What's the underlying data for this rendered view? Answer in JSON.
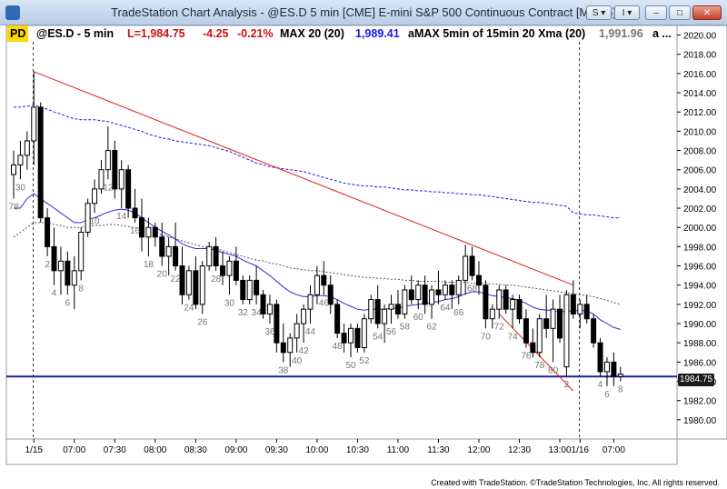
{
  "window": {
    "title": "TradeStation Chart Analysis - @ES.D 5 min [CME] E-mini S&P 500 Continuous Contract [Mar15]",
    "buttons": {
      "s": "S ▾",
      "i": "I ▾",
      "minimize": "–",
      "maximize": "□",
      "close": "✕"
    }
  },
  "infobar": {
    "badge": "PD",
    "symbol": "@ES.D - 5 min",
    "last": "L=1,984.75",
    "change": "-4.25",
    "pct": "-0.21%",
    "max_label": "MAX 20 (20)",
    "max_value": "1,989.41",
    "amax_label": "aMAX 5min of 15min 20 Xma (20)",
    "amax_value": "1,991.96",
    "more": "a ..."
  },
  "price_box": "1984.75",
  "footer": "Created with TradeStation. ©TradeStation Technologies, Inc. All rights reserved.",
  "colors": {
    "bar": "#000000",
    "ema": "#2b2bd6",
    "band_upper": "#1a1ae6",
    "band_lower": "#555555",
    "trendline": "#e02020",
    "support": "#2020a0",
    "axis_text": "#000000",
    "bar_label": "#777777"
  },
  "chart_data": {
    "type": "candlestick",
    "y_axis": {
      "min": 1978,
      "max": 2021,
      "ticks": [
        1980,
        1982,
        1984,
        1986,
        1988,
        1990,
        1992,
        1994,
        1996,
        1998,
        2000,
        2002,
        2004,
        2006,
        2008,
        2010,
        2012,
        2014,
        2016,
        2018,
        2020
      ]
    },
    "x_axis": {
      "labels": [
        {
          "label": "1/15",
          "bar": 3
        },
        {
          "label": "07:00",
          "bar": 9
        },
        {
          "label": "07:30",
          "bar": 15
        },
        {
          "label": "08:00",
          "bar": 21
        },
        {
          "label": "08:30",
          "bar": 27
        },
        {
          "label": "09:00",
          "bar": 33
        },
        {
          "label": "09:30",
          "bar": 39
        },
        {
          "label": "10:00",
          "bar": 45
        },
        {
          "label": "10:30",
          "bar": 51
        },
        {
          "label": "11:00",
          "bar": 57
        },
        {
          "label": "11:30",
          "bar": 63
        },
        {
          "label": "12:00",
          "bar": 69
        },
        {
          "label": "12:30",
          "bar": 75
        },
        {
          "label": "13:00",
          "bar": 81
        },
        {
          "label": "1/16",
          "bar": 84
        },
        {
          "label": "07:00",
          "bar": 89
        }
      ]
    },
    "session_breaks": [
      3,
      84
    ],
    "bars": [
      [
        2005.5,
        2008,
        2003,
        2006.5
      ],
      [
        2006.5,
        2009,
        2005,
        2007.5
      ],
      [
        2007.5,
        2010,
        2006,
        2009
      ],
      [
        2009,
        2016.2,
        2006.5,
        2012.5
      ],
      [
        2012.5,
        2013,
        2000.5,
        2001
      ],
      [
        2001,
        2002,
        1997,
        1998
      ],
      [
        1998,
        2000,
        1994,
        1995.5
      ],
      [
        1995.5,
        1998,
        1993,
        1996.5
      ],
      [
        1996.5,
        1997.5,
        1993,
        1994
      ],
      [
        1994,
        1997,
        1991.5,
        1995.5
      ],
      [
        1995.5,
        2000,
        1994.5,
        1999.5
      ],
      [
        1999.5,
        2003,
        1999,
        2002.5
      ],
      [
        2002.5,
        2005,
        2001.5,
        2004
      ],
      [
        2004,
        2007,
        2003.5,
        2006
      ],
      [
        2006,
        2010.5,
        2005,
        2008
      ],
      [
        2008,
        2009,
        2003,
        2004
      ],
      [
        2004,
        2007,
        2002,
        2006
      ],
      [
        2006,
        2006.5,
        2001,
        2002
      ],
      [
        2002,
        2004,
        2000.5,
        2001
      ],
      [
        2001,
        2003,
        1997.5,
        1999
      ],
      [
        1999,
        2001,
        1997,
        2000
      ],
      [
        2000,
        2000.5,
        1998,
        1999
      ],
      [
        1999,
        2000.5,
        1996,
        1997
      ],
      [
        1997,
        1999,
        1995,
        1998
      ],
      [
        1998,
        2000.5,
        1995.5,
        1996
      ],
      [
        1996,
        1998,
        1992,
        1993
      ],
      [
        1993,
        1996,
        1992.5,
        1995.5
      ],
      [
        1995.5,
        1997,
        1991.5,
        1992
      ],
      [
        1992,
        1996.5,
        1991,
        1996
      ],
      [
        1996,
        1998.5,
        1995.5,
        1998
      ],
      [
        1998,
        1999,
        1995.5,
        1996
      ],
      [
        1996,
        1997.5,
        1994,
        1995
      ],
      [
        1995,
        1997,
        1993,
        1996.5
      ],
      [
        1996.5,
        1998,
        1994,
        1994.5
      ],
      [
        1994.5,
        1995,
        1992,
        1992.5
      ],
      [
        1992.5,
        1995,
        1992,
        1994.5
      ],
      [
        1994.5,
        1996,
        1992,
        1993
      ],
      [
        1993,
        1993.5,
        1990.5,
        1991
      ],
      [
        1991,
        1993,
        1990,
        1992
      ],
      [
        1992,
        1992.5,
        1987,
        1988
      ],
      [
        1988,
        1990,
        1986,
        1987
      ],
      [
        1987,
        1989,
        1985.5,
        1988.5
      ],
      [
        1988.5,
        1991,
        1987,
        1990
      ],
      [
        1990,
        1992,
        1988,
        1991.5
      ],
      [
        1991.5,
        1994,
        1990,
        1993
      ],
      [
        1993,
        1996,
        1992,
        1995
      ],
      [
        1995,
        1996.5,
        1993,
        1994
      ],
      [
        1994,
        1995,
        1991,
        1992
      ],
      [
        1992,
        1992.5,
        1988.5,
        1989
      ],
      [
        1989,
        1990,
        1987,
        1988
      ],
      [
        1988,
        1990,
        1986.5,
        1989.5
      ],
      [
        1989.5,
        1990,
        1987,
        1987.5
      ],
      [
        1987.5,
        1991,
        1987,
        1990.5
      ],
      [
        1990.5,
        1993,
        1990,
        1992.5
      ],
      [
        1992.5,
        1994,
        1989.5,
        1990
      ],
      [
        1990,
        1992,
        1988,
        1991.5
      ],
      [
        1991.5,
        1993,
        1990,
        1992
      ],
      [
        1992,
        1993.5,
        1990.5,
        1991
      ],
      [
        1991,
        1994,
        1990.5,
        1993.5
      ],
      [
        1993.5,
        1995,
        1992,
        1992.5
      ],
      [
        1992.5,
        1994.5,
        1991.5,
        1994
      ],
      [
        1994,
        1995,
        1991,
        1992
      ],
      [
        1992,
        1994,
        1990.5,
        1993.5
      ],
      [
        1993.5,
        1995.5,
        1992,
        1993
      ],
      [
        1993,
        1994.5,
        1992.5,
        1994
      ],
      [
        1994,
        1994.5,
        1991.5,
        1993
      ],
      [
        1993,
        1995,
        1992,
        1994.5
      ],
      [
        1994.5,
        1998.2,
        1993,
        1997
      ],
      [
        1997,
        1998,
        1994.5,
        1995
      ],
      [
        1995,
        1996.5,
        1993,
        1994
      ],
      [
        1994,
        1994.5,
        1989.5,
        1990.5
      ],
      [
        1990.5,
        1992,
        1989.5,
        1991.5
      ],
      [
        1991.5,
        1994,
        1990.5,
        1993.5
      ],
      [
        1993.5,
        1994,
        1991,
        1991.5
      ],
      [
        1991.5,
        1993,
        1989.5,
        1992.5
      ],
      [
        1992.5,
        1993,
        1990,
        1990.5
      ],
      [
        1990.5,
        1991.5,
        1987.5,
        1988
      ],
      [
        1988,
        1989.5,
        1986.5,
        1987
      ],
      [
        1987,
        1991,
        1986.5,
        1990.5
      ],
      [
        1990.5,
        1993,
        1988.5,
        1989.5
      ],
      [
        1989.5,
        1992.5,
        1986,
        1991.5
      ],
      [
        1991.5,
        1993,
        1988,
        1988.5
      ],
      [
        1985.5,
        1993.5,
        1984.5,
        1993
      ],
      [
        1993,
        1994.5,
        1990.5,
        1991
      ],
      [
        1991,
        1992.5,
        1989.5,
        1992
      ],
      [
        1992,
        1993,
        1990,
        1990.5
      ],
      [
        1990.5,
        1991,
        1987.5,
        1988
      ],
      [
        1988,
        1988.5,
        1984.5,
        1985
      ],
      [
        1985,
        1986.5,
        1983.5,
        1986
      ],
      [
        1986,
        1987,
        1983.5,
        1984.5
      ],
      [
        1984.5,
        1985.5,
        1984,
        1984.75
      ]
    ],
    "bar_labels": [
      {
        "bar": 1,
        "text": "30"
      },
      {
        "bar": 0,
        "text": "78"
      },
      {
        "bar": 5,
        "text": "2"
      },
      {
        "bar": 6,
        "text": "4"
      },
      {
        "bar": 8,
        "text": "6"
      },
      {
        "bar": 10,
        "text": "8"
      },
      {
        "bar": 12,
        "text": "10"
      },
      {
        "bar": 14,
        "text": "12"
      },
      {
        "bar": 16,
        "text": "14"
      },
      {
        "bar": 18,
        "text": "16"
      },
      {
        "bar": 20,
        "text": "18"
      },
      {
        "bar": 22,
        "text": "20"
      },
      {
        "bar": 24,
        "text": "22"
      },
      {
        "bar": 26,
        "text": "24"
      },
      {
        "bar": 28,
        "text": "26"
      },
      {
        "bar": 30,
        "text": "28"
      },
      {
        "bar": 32,
        "text": "30"
      },
      {
        "bar": 34,
        "text": "32"
      },
      {
        "bar": 36,
        "text": "34"
      },
      {
        "bar": 38,
        "text": "36"
      },
      {
        "bar": 40,
        "text": "38"
      },
      {
        "bar": 42,
        "text": "40"
      },
      {
        "bar": 43,
        "text": "42"
      },
      {
        "bar": 44,
        "text": "44"
      },
      {
        "bar": 46,
        "text": "46"
      },
      {
        "bar": 48,
        "text": "48"
      },
      {
        "bar": 50,
        "text": "50"
      },
      {
        "bar": 52,
        "text": "52"
      },
      {
        "bar": 54,
        "text": "54"
      },
      {
        "bar": 56,
        "text": "56"
      },
      {
        "bar": 58,
        "text": "58"
      },
      {
        "bar": 60,
        "text": "60"
      },
      {
        "bar": 62,
        "text": "62"
      },
      {
        "bar": 64,
        "text": "64"
      },
      {
        "bar": 66,
        "text": "66"
      },
      {
        "bar": 68,
        "text": "68"
      },
      {
        "bar": 70,
        "text": "70"
      },
      {
        "bar": 72,
        "text": "72"
      },
      {
        "bar": 74,
        "text": "74"
      },
      {
        "bar": 76,
        "text": "76"
      },
      {
        "bar": 78,
        "text": "78"
      },
      {
        "bar": 80,
        "text": "80"
      },
      {
        "bar": 82,
        "text": "2"
      },
      {
        "bar": 87,
        "text": "4"
      },
      {
        "bar": 88,
        "text": "6"
      },
      {
        "bar": 90,
        "text": "8"
      }
    ],
    "ema": [
      2002,
      2002,
      2003,
      2003.5,
      2003,
      2002.5,
      2002,
      2001.5,
      2001,
      2000.5,
      2000.5,
      2000.8,
      2001,
      2001.3,
      2001.6,
      2001.8,
      2001.9,
      2001.8,
      2001.5,
      2001,
      2000.5,
      2000,
      1999.6,
      1999.2,
      1998.8,
      1998.3,
      1998,
      1997.8,
      1997.8,
      1997.8,
      1997.6,
      1997.4,
      1997.2,
      1997,
      1996.6,
      1996.3,
      1996,
      1995.5,
      1995,
      1994.4,
      1993.8,
      1993.3,
      1993,
      1992.8,
      1992.8,
      1992.9,
      1992.9,
      1992.8,
      1992.5,
      1992.1,
      1991.8,
      1991.5,
      1991.4,
      1991.5,
      1991.5,
      1991.5,
      1991.6,
      1991.6,
      1991.8,
      1991.9,
      1992,
      1992.1,
      1992.2,
      1992.3,
      1992.5,
      1992.6,
      1992.8,
      1993.1,
      1993.3,
      1993.3,
      1993.1,
      1992.9,
      1992.8,
      1992.7,
      1992.6,
      1992.4,
      1992.1,
      1991.7,
      1991.5,
      1991.4,
      1991.4,
      1991.2,
      1991.3,
      1991.3,
      1991.4,
      1991.3,
      1991,
      1990.4,
      1990,
      1989.6,
      1989.4
    ],
    "band_upper": [
      2012.5,
      2012.5,
      2012.6,
      2012.7,
      2012.5,
      2012.3,
      2012,
      2011.8,
      2011.5,
      2011.3,
      2011.2,
      2011.2,
      2011.2,
      2011.1,
      2011,
      2010.8,
      2010.6,
      2010.4,
      2010.2,
      2010,
      2009.7,
      2009.5,
      2009.3,
      2009.2,
      2009,
      2008.9,
      2008.8,
      2008.7,
      2008.6,
      2008.5,
      2008.3,
      2008.1,
      2007.9,
      2007.6,
      2007.3,
      2007,
      2006.7,
      2006.5,
      2006.3,
      2006.2,
      2006.1,
      2006,
      2005.9,
      2005.8,
      2005.6,
      2005.4,
      2005.2,
      2005,
      2004.8,
      2004.6,
      2004.5,
      2004.4,
      2004.3,
      2004.3,
      2004.2,
      2004.2,
      2004.1,
      2004,
      2003.9,
      2003.9,
      2003.8,
      2003.8,
      2003.7,
      2003.7,
      2003.6,
      2003.6,
      2003.5,
      2003.5,
      2003.4,
      2003.4,
      2003.3,
      2003.2,
      2003.1,
      2003,
      2002.9,
      2002.8,
      2002.7,
      2002.6,
      2002.6,
      2002.5,
      2002.4,
      2002.3,
      2002.2,
      2001.5,
      2001.4,
      2001.3,
      2001.3,
      2001.2,
      2001.1,
      2001,
      2001
    ],
    "band_lower": [
      1999,
      1999.5,
      2000,
      2000.5,
      2000.5,
      2000.5,
      2000.3,
      2000.2,
      2000,
      2000,
      2000,
      2000.1,
      2000.2,
      2000.2,
      2000.3,
      2000.3,
      2000.2,
      2000.1,
      2000,
      1999.8,
      1999.6,
      1999.4,
      1999.2,
      1999,
      1998.8,
      1998.6,
      1998.4,
      1998.2,
      1998,
      1997.9,
      1997.8,
      1997.6,
      1997.4,
      1997.2,
      1997,
      1996.8,
      1996.6,
      1996.5,
      1996.3,
      1996.2,
      1996,
      1995.8,
      1995.7,
      1995.6,
      1995.5,
      1995.5,
      1995.4,
      1995.3,
      1995.2,
      1995.1,
      1995,
      1994.9,
      1994.8,
      1994.8,
      1994.7,
      1994.7,
      1994.6,
      1994.6,
      1994.5,
      1994.5,
      1994.4,
      1994.4,
      1994.4,
      1994.4,
      1994.3,
      1994.3,
      1994.3,
      1994.3,
      1994.2,
      1994.2,
      1994.2,
      1994.1,
      1994.1,
      1994,
      1994,
      1993.9,
      1993.8,
      1993.7,
      1993.6,
      1993.5,
      1993.4,
      1993.3,
      1993.2,
      1993.1,
      1993,
      1992.9,
      1992.8,
      1992.6,
      1992.4,
      1992.2,
      1992
    ],
    "trendlines": [
      {
        "from": [
          3,
          2016.2
        ],
        "to": [
          83,
          1994
        ]
      },
      {
        "from": [
          72,
          1991
        ],
        "to": [
          83,
          1983
        ]
      }
    ],
    "support_line": 1984.5
  }
}
